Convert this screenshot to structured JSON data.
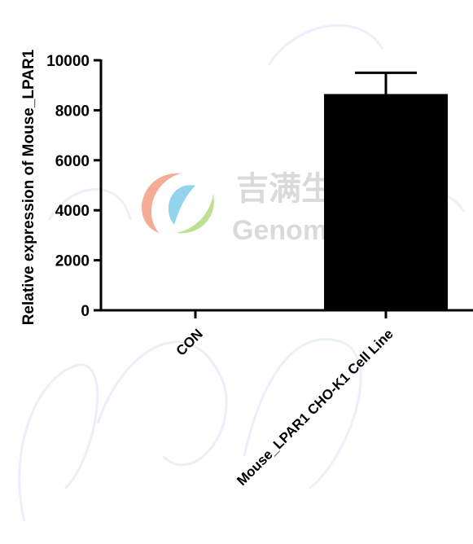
{
  "chart_data": {
    "type": "bar",
    "categories": [
      "CON",
      "Mouse_LPAR1 CHO-K1 Cell Line"
    ],
    "values": [
      0,
      8650
    ],
    "error": [
      0,
      850
    ],
    "ylabel": "Relative expression of Mouse_LPAR1",
    "ylim": [
      0,
      10000
    ],
    "yticks": [
      "0",
      "2000",
      "4000",
      "6000",
      "8000",
      "10000"
    ],
    "ytick_values": [
      0,
      2000,
      4000,
      6000,
      8000,
      10000
    ],
    "grid": false,
    "bar_color": "#000000"
  },
  "watermark": {
    "brand_cn": "吉满生物科技",
    "brand_en": "Genomeditech",
    "logo_colors": [
      "#ec6a3f",
      "#3bb0dd",
      "#8cc63f"
    ]
  }
}
